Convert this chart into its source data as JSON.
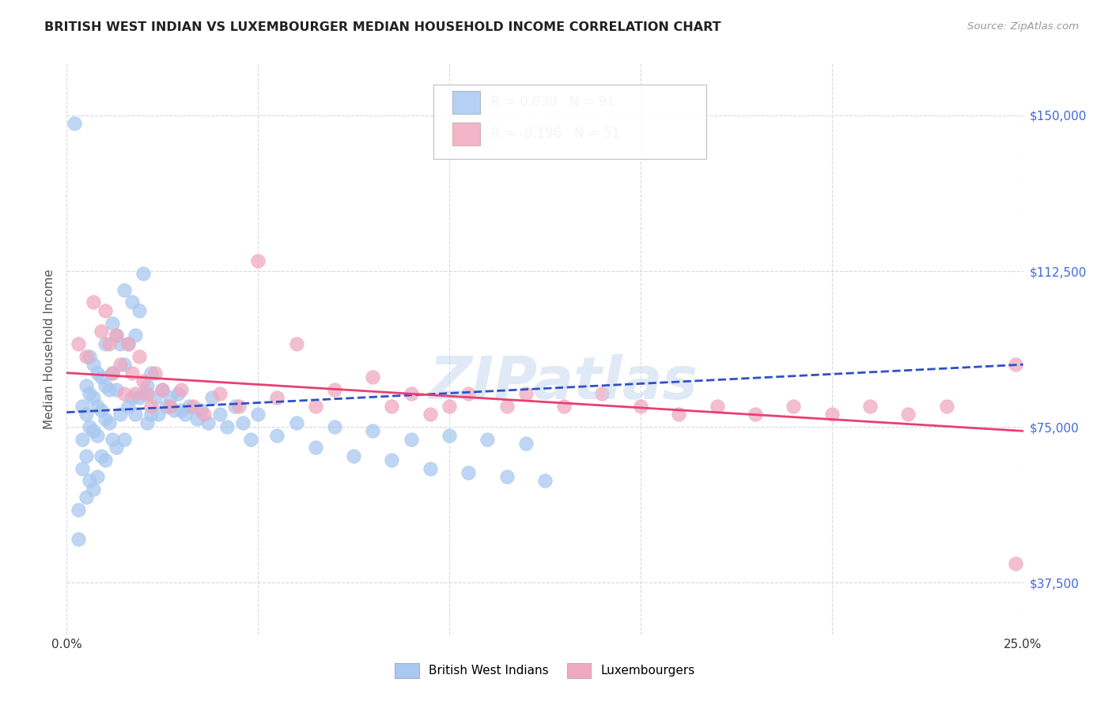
{
  "title": "BRITISH WEST INDIAN VS LUXEMBOURGER MEDIAN HOUSEHOLD INCOME CORRELATION CHART",
  "source": "Source: ZipAtlas.com",
  "ylabel": "Median Household Income",
  "xlim": [
    0.0,
    0.25
  ],
  "ylim": [
    25000,
    162500
  ],
  "yticks": [
    37500,
    75000,
    112500,
    150000
  ],
  "ytick_labels": [
    "$37,500",
    "$75,000",
    "$112,500",
    "$150,000"
  ],
  "xticks": [
    0.0,
    0.05,
    0.1,
    0.15,
    0.2,
    0.25
  ],
  "xtick_labels": [
    "0.0%",
    "",
    "",
    "",
    "",
    "25.0%"
  ],
  "blue_color": "#A8C8F0",
  "pink_color": "#F0A8C0",
  "blue_line_color": "#3050C8",
  "pink_line_color": "#E84070",
  "grid_color": "#D8D8E8",
  "R_blue": 0.03,
  "N_blue": 91,
  "R_pink": -0.196,
  "N_pink": 51,
  "watermark": "ZIPatlas",
  "background_color": "#FFFFFF",
  "blue_trend_x0": 0.0,
  "blue_trend_y0": 78500,
  "blue_trend_x1": 0.25,
  "blue_trend_y1": 90000,
  "pink_trend_x0": 0.0,
  "pink_trend_y0": 88000,
  "pink_trend_x1": 0.25,
  "pink_trend_y1": 74000,
  "blue_scatter_x": [
    0.002,
    0.003,
    0.003,
    0.004,
    0.004,
    0.004,
    0.005,
    0.005,
    0.005,
    0.005,
    0.006,
    0.006,
    0.006,
    0.006,
    0.007,
    0.007,
    0.007,
    0.007,
    0.008,
    0.008,
    0.008,
    0.008,
    0.009,
    0.009,
    0.009,
    0.01,
    0.01,
    0.01,
    0.01,
    0.011,
    0.011,
    0.012,
    0.012,
    0.012,
    0.013,
    0.013,
    0.013,
    0.014,
    0.014,
    0.015,
    0.015,
    0.015,
    0.016,
    0.016,
    0.017,
    0.017,
    0.018,
    0.018,
    0.019,
    0.019,
    0.02,
    0.02,
    0.021,
    0.021,
    0.022,
    0.022,
    0.023,
    0.024,
    0.025,
    0.026,
    0.027,
    0.028,
    0.029,
    0.03,
    0.031,
    0.032,
    0.034,
    0.035,
    0.037,
    0.038,
    0.04,
    0.042,
    0.044,
    0.046,
    0.048,
    0.05,
    0.055,
    0.06,
    0.065,
    0.07,
    0.075,
    0.08,
    0.085,
    0.09,
    0.095,
    0.1,
    0.105,
    0.11,
    0.115,
    0.12,
    0.125
  ],
  "blue_scatter_y": [
    148000,
    55000,
    48000,
    80000,
    72000,
    65000,
    85000,
    78000,
    68000,
    58000,
    92000,
    83000,
    75000,
    62000,
    90000,
    82000,
    74000,
    60000,
    88000,
    80000,
    73000,
    63000,
    87000,
    79000,
    68000,
    95000,
    85000,
    77000,
    67000,
    84000,
    76000,
    100000,
    88000,
    72000,
    97000,
    84000,
    70000,
    95000,
    78000,
    108000,
    90000,
    72000,
    95000,
    80000,
    105000,
    82000,
    97000,
    78000,
    103000,
    82000,
    112000,
    83000,
    85000,
    76000,
    88000,
    78000,
    82000,
    78000,
    84000,
    80000,
    82000,
    79000,
    83000,
    79000,
    78000,
    80000,
    77000,
    79000,
    76000,
    82000,
    78000,
    75000,
    80000,
    76000,
    72000,
    78000,
    73000,
    76000,
    70000,
    75000,
    68000,
    74000,
    67000,
    72000,
    65000,
    73000,
    64000,
    72000,
    63000,
    71000,
    62000
  ],
  "pink_scatter_x": [
    0.003,
    0.005,
    0.007,
    0.009,
    0.01,
    0.011,
    0.012,
    0.013,
    0.014,
    0.015,
    0.016,
    0.017,
    0.018,
    0.019,
    0.02,
    0.021,
    0.022,
    0.023,
    0.025,
    0.027,
    0.03,
    0.033,
    0.036,
    0.04,
    0.045,
    0.05,
    0.055,
    0.06,
    0.065,
    0.07,
    0.08,
    0.085,
    0.09,
    0.095,
    0.1,
    0.105,
    0.115,
    0.12,
    0.13,
    0.14,
    0.15,
    0.16,
    0.17,
    0.18,
    0.19,
    0.2,
    0.21,
    0.22,
    0.23,
    0.248,
    0.248
  ],
  "pink_scatter_y": [
    95000,
    92000,
    105000,
    98000,
    103000,
    95000,
    88000,
    97000,
    90000,
    83000,
    95000,
    88000,
    83000,
    92000,
    86000,
    83000,
    80000,
    88000,
    84000,
    80000,
    84000,
    80000,
    78000,
    83000,
    80000,
    115000,
    82000,
    95000,
    80000,
    84000,
    87000,
    80000,
    83000,
    78000,
    80000,
    83000,
    80000,
    83000,
    80000,
    83000,
    80000,
    78000,
    80000,
    78000,
    80000,
    78000,
    80000,
    78000,
    80000,
    90000,
    42000
  ]
}
